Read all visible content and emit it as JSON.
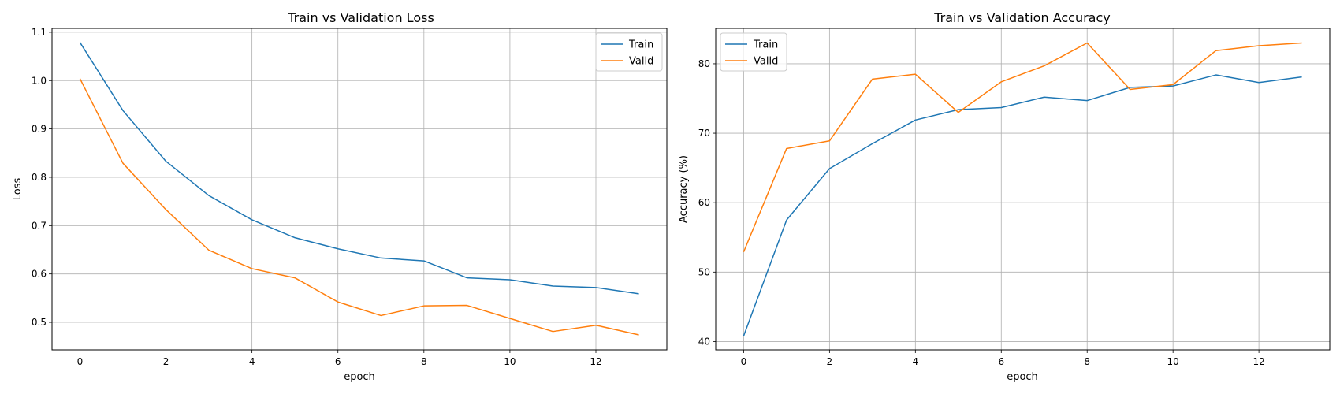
{
  "chart_data": [
    {
      "type": "line",
      "title": "Train vs Validation Loss",
      "xlabel": "epoch",
      "ylabel": "Loss",
      "xlim": [
        -0.65,
        13.65
      ],
      "ylim": [
        0.443,
        1.108
      ],
      "xticks": [
        0,
        2,
        4,
        6,
        8,
        10,
        12
      ],
      "yticks": [
        0.5,
        0.6,
        0.7,
        0.8,
        0.9,
        1.0,
        1.1
      ],
      "ytick_labels": [
        "0.5",
        "0.6",
        "0.7",
        "0.8",
        "0.9",
        "1.0",
        "1.1"
      ],
      "grid": true,
      "legend_position": "upper right",
      "x": [
        0,
        1,
        2,
        3,
        4,
        5,
        6,
        7,
        8,
        9,
        10,
        11,
        12,
        13
      ],
      "series": [
        {
          "name": "Train",
          "color": "#1f77b4",
          "values": [
            1.079,
            0.938,
            0.833,
            0.762,
            0.712,
            0.675,
            0.652,
            0.633,
            0.627,
            0.592,
            0.588,
            0.575,
            0.572,
            0.559
          ]
        },
        {
          "name": "Valid",
          "color": "#ff7f0e",
          "values": [
            1.004,
            0.829,
            0.733,
            0.649,
            0.611,
            0.592,
            0.542,
            0.514,
            0.534,
            0.535,
            0.508,
            0.481,
            0.494,
            0.474
          ]
        }
      ]
    },
    {
      "type": "line",
      "title": "Train vs Validation Accuracy",
      "xlabel": "epoch",
      "ylabel": "Accuracy (%)",
      "xlim": [
        -0.65,
        13.65
      ],
      "ylim": [
        38.8,
        85.1
      ],
      "xticks": [
        0,
        2,
        4,
        6,
        8,
        10,
        12
      ],
      "yticks": [
        40,
        50,
        60,
        70,
        80
      ],
      "ytick_labels": [
        "40",
        "50",
        "60",
        "70",
        "80"
      ],
      "grid": true,
      "legend_position": "upper left",
      "x": [
        0,
        1,
        2,
        3,
        4,
        5,
        6,
        7,
        8,
        9,
        10,
        11,
        12,
        13
      ],
      "series": [
        {
          "name": "Train",
          "color": "#1f77b4",
          "values": [
            40.8,
            57.5,
            64.9,
            68.5,
            71.9,
            73.4,
            73.7,
            75.2,
            74.7,
            76.6,
            76.8,
            78.4,
            77.3,
            78.1
          ]
        },
        {
          "name": "Valid",
          "color": "#ff7f0e",
          "values": [
            52.9,
            67.8,
            68.9,
            77.8,
            78.5,
            73.0,
            77.4,
            79.7,
            83.0,
            76.3,
            77.0,
            81.9,
            82.6,
            83.0
          ]
        }
      ]
    }
  ]
}
